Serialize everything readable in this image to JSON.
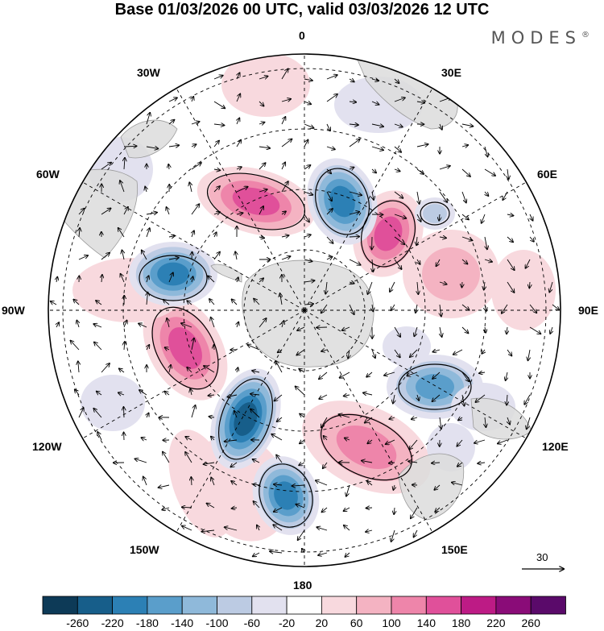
{
  "title": "Base 01/03/2026 00 UTC, valid 03/03/2026 12 UTC",
  "brand": "MODES",
  "brand_mark": "®",
  "longitude_labels": {
    "top": "0",
    "top_right": "30E",
    "right_upper": "60E",
    "right": "90E",
    "right_lower": "120E",
    "bottom_right": "150E",
    "bottom": "180",
    "bottom_left": "150W",
    "left_lower": "120W",
    "left": "90W",
    "left_upper": "60W",
    "top_left": "30W"
  },
  "reference_vector": {
    "label": "30"
  },
  "colorbar": {
    "labels": [
      "-260",
      "-220",
      "-180",
      "-140",
      "-100",
      "-60",
      "-20",
      "20",
      "60",
      "100",
      "140",
      "180",
      "220",
      "260"
    ],
    "colors": [
      "#0d3a57",
      "#175e8a",
      "#2c80b5",
      "#5a9ecb",
      "#8fb9da",
      "#bccbe3",
      "#e2e1ef",
      "#ffffff",
      "#f8d9de",
      "#f4b3c2",
      "#ee85aa",
      "#e0509a",
      "#bd1b85",
      "#8a0c78",
      "#5a0a6a"
    ]
  },
  "colors": {
    "land": "#dcdcdc",
    "coast": "#9a9a9a",
    "grid": "#000000",
    "arrow": "#000000"
  }
}
